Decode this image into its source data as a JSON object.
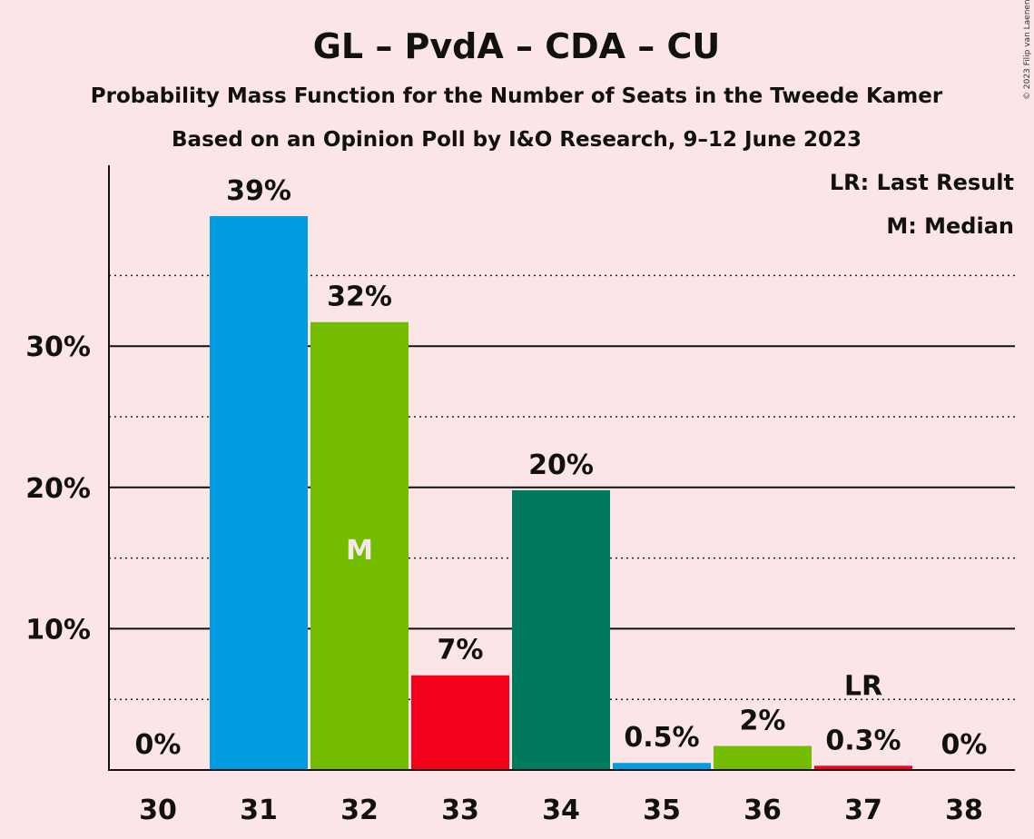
{
  "header": {
    "title": "GL – PvdA – CDA – CU",
    "subtitle1": "Probability Mass Function for the Number of Seats in the Tweede Kamer",
    "subtitle2": "Based on an Opinion Poll by I&O Research, 9–12 June 2023",
    "copyright": "© 2023 Filip van Laenen"
  },
  "legend": {
    "lr": "LR: Last Result",
    "m": "M: Median"
  },
  "chart_data": {
    "type": "bar",
    "categories": [
      "30",
      "31",
      "32",
      "33",
      "34",
      "35",
      "36",
      "37",
      "38"
    ],
    "values": [
      0,
      39.2,
      31.7,
      6.7,
      19.8,
      0.5,
      1.7,
      0.3,
      0
    ],
    "labels": [
      "0%",
      "39%",
      "32%",
      "7%",
      "20%",
      "0.5%",
      "2%",
      "0.3%",
      "0%"
    ],
    "colors": [
      "#009ee0",
      "#009ee0",
      "#74bc00",
      "#f5001a",
      "#007a5e",
      "#009ee0",
      "#74bc00",
      "#f5001a",
      "#007a5e"
    ],
    "ylim": [
      0,
      42
    ],
    "yticks": [
      10,
      20,
      30
    ],
    "ytick_labels": [
      "10%",
      "20%",
      "30%"
    ],
    "minor_gridlines": [
      5,
      15,
      25,
      35
    ],
    "median": {
      "category": "32",
      "label": "M"
    },
    "last_result": {
      "category": "37",
      "label": "LR"
    },
    "legend_position": "top-right"
  }
}
